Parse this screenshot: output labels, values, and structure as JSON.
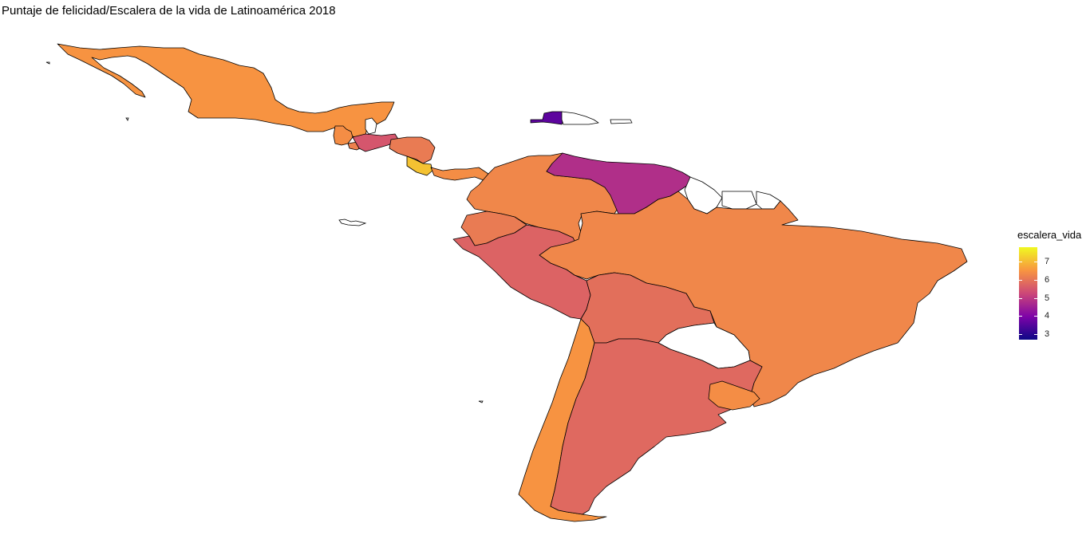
{
  "title": "Puntaje de felicidad/Escalera de la vida de Latinoamérica 2018",
  "legend": {
    "title": "escalera_vida",
    "min": 2.7,
    "max": 7.8,
    "ticks": [
      "7",
      "6",
      "5",
      "4",
      "3"
    ],
    "tick_values": [
      7,
      6,
      5,
      4,
      3
    ],
    "colors": [
      "#f0f921",
      "#f89540",
      "#cc4778",
      "#7e03a8",
      "#0d0887"
    ]
  },
  "colors": {
    "no_data": "#ffffff",
    "border": "#000000"
  },
  "countries": [
    {
      "name": "Mexico",
      "value": 6.5
    },
    {
      "name": "Guatemala",
      "value": 6.4
    },
    {
      "name": "Belize",
      "value": null
    },
    {
      "name": "El Salvador",
      "value": 6.2
    },
    {
      "name": "Honduras",
      "value": 5.5
    },
    {
      "name": "Nicaragua",
      "value": 6.1
    },
    {
      "name": "Costa Rica",
      "value": 7.1
    },
    {
      "name": "Panama",
      "value": 6.4
    },
    {
      "name": "Haiti",
      "value": 3.6
    },
    {
      "name": "Dominican Republic",
      "value": null
    },
    {
      "name": "Puerto Rico",
      "value": null
    },
    {
      "name": "Colombia",
      "value": 6.3
    },
    {
      "name": "Venezuela",
      "value": 4.8
    },
    {
      "name": "Guyana",
      "value": null
    },
    {
      "name": "Suriname",
      "value": null
    },
    {
      "name": "French Guiana",
      "value": null
    },
    {
      "name": "Ecuador",
      "value": 6.1
    },
    {
      "name": "Peru",
      "value": 5.7
    },
    {
      "name": "Brazil",
      "value": 6.3
    },
    {
      "name": "Bolivia",
      "value": 5.9
    },
    {
      "name": "Paraguay",
      "value": null
    },
    {
      "name": "Chile",
      "value": 6.5
    },
    {
      "name": "Argentina",
      "value": 5.8
    },
    {
      "name": "Uruguay",
      "value": 6.4
    }
  ]
}
